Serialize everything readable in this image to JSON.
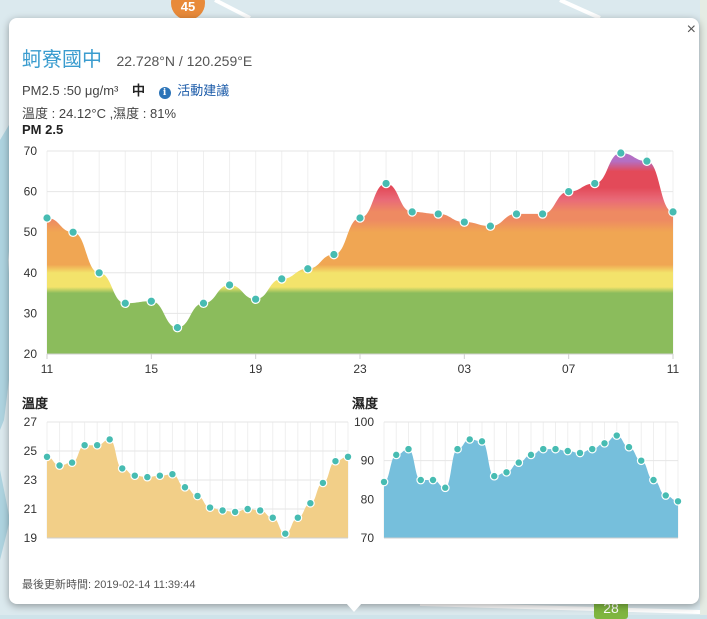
{
  "map": {
    "marker_label": "45",
    "badge_label": "28"
  },
  "popup": {
    "close_label": "×",
    "site_name": "蚵寮國中",
    "coordinates": "22.728°N / 120.259°E",
    "pm25_text": "PM2.5 :50 μg/m³",
    "level": "中",
    "info_glyph": "i",
    "advice_link": "活動建議",
    "weather_text": "溫度 : 24.12°C ,濕度 : 81%",
    "updated": "最後更新時間: 2019-02-14 11:39:44"
  },
  "colors": {
    "point_fill": "#47bcb2",
    "pm_bands": [
      "#8bbc5c",
      "#f3e36b",
      "#f0a653",
      "#ee8a62",
      "#e96a78",
      "#e34a59",
      "#b46fc4"
    ],
    "temperature_fill": "#f2cf88",
    "humidity_fill": "#76bfdc"
  },
  "chart_data": [
    {
      "type": "area",
      "title": "PM 2.5",
      "x_tick_labels": [
        "11",
        "15",
        "19",
        "23",
        "03",
        "07",
        "11"
      ],
      "y_ticks": [
        20,
        30,
        40,
        50,
        60,
        70
      ],
      "ylim": [
        20,
        70
      ],
      "grid": true,
      "values": [
        53.5,
        50,
        40,
        32.5,
        33,
        26.5,
        32.5,
        37,
        33.5,
        38.5,
        41,
        44.5,
        53.5,
        62,
        55,
        54.5,
        52.5,
        51.5,
        54.5,
        54.5,
        60,
        62,
        69.5,
        67.5,
        55
      ]
    },
    {
      "type": "area",
      "title": "溫度",
      "y_ticks": [
        19,
        21,
        23,
        25,
        27
      ],
      "ylim": [
        19,
        27
      ],
      "grid": true,
      "values": [
        24.6,
        24,
        24.2,
        25.4,
        25.4,
        25.8,
        23.8,
        23.3,
        23.2,
        23.3,
        23.4,
        22.5,
        21.9,
        21.1,
        20.9,
        20.8,
        21,
        20.9,
        20.4,
        19.3,
        20.4,
        21.4,
        22.8,
        24.3,
        24.6
      ]
    },
    {
      "type": "area",
      "title": "濕度",
      "y_ticks": [
        70,
        80,
        90,
        100
      ],
      "ylim": [
        70,
        100
      ],
      "grid": true,
      "values": [
        84.5,
        91.5,
        93,
        85,
        85,
        83,
        93,
        95.5,
        95,
        86,
        87,
        89.5,
        91.5,
        93,
        93,
        92.5,
        92,
        93,
        94.5,
        96.5,
        93.5,
        90,
        85,
        81,
        79.5
      ]
    }
  ]
}
